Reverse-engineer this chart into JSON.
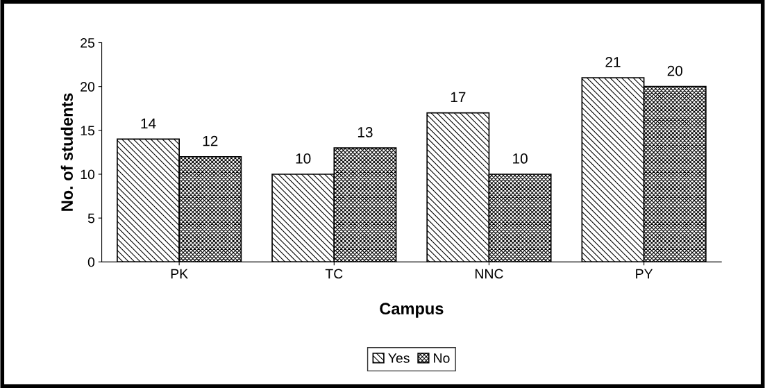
{
  "chart_data": {
    "type": "bar",
    "xlabel": "Campus",
    "ylabel": "No. of students",
    "categories": [
      "PK",
      "TC",
      "NNC",
      "PY"
    ],
    "series": [
      {
        "name": "Yes",
        "color": "#000000",
        "values": [
          14,
          10,
          17,
          21
        ]
      },
      {
        "name": "No",
        "color": "#000000",
        "values": [
          12,
          13,
          10,
          20
        ]
      }
    ],
    "ylim": [
      0,
      25
    ],
    "yticks": [
      0,
      5,
      10,
      15,
      20,
      25
    ],
    "grid": false,
    "legend": "bottom",
    "data_labels": true
  }
}
